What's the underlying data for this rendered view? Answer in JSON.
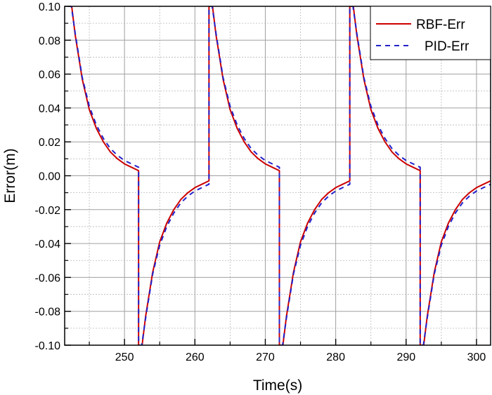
{
  "chart_data": {
    "type": "line",
    "xlabel": "Time(s)",
    "ylabel": "Error(m)",
    "xlim": [
      241.5,
      302
    ],
    "ylim": [
      -0.1,
      0.1
    ],
    "x_ticks": [
      250,
      260,
      270,
      280,
      290,
      300
    ],
    "y_ticks": [
      -0.1,
      -0.08,
      -0.06,
      -0.04,
      -0.02,
      0.0,
      0.02,
      0.04,
      0.06,
      0.08,
      0.1
    ],
    "x_tick_labels": [
      "250",
      "260",
      "270",
      "280",
      "290",
      "300"
    ],
    "y_tick_labels": [
      "-0.10",
      "-0.08",
      "-0.06",
      "-0.04",
      "-0.02",
      "0.00",
      "0.02",
      "0.04",
      "0.06",
      "0.08",
      "0.10"
    ],
    "grid": true,
    "legend_position": "top-right",
    "series": [
      {
        "name": "RBF-Err",
        "color": "#cc0000",
        "style": "solid",
        "points": [
          [
            242.0,
            0.1
          ],
          [
            242.5,
            0.1
          ],
          [
            243.0,
            0.083
          ],
          [
            244.0,
            0.057
          ],
          [
            245.0,
            0.039
          ],
          [
            246.0,
            0.028
          ],
          [
            247.0,
            0.02
          ],
          [
            248.0,
            0.014
          ],
          [
            249.0,
            0.01
          ],
          [
            250.0,
            0.007
          ],
          [
            251.0,
            0.005
          ],
          [
            252.0,
            0.003
          ],
          [
            252.0,
            -0.1
          ],
          [
            252.5,
            -0.1
          ],
          [
            253.0,
            -0.083
          ],
          [
            254.0,
            -0.057
          ],
          [
            255.0,
            -0.039
          ],
          [
            256.0,
            -0.028
          ],
          [
            257.0,
            -0.02
          ],
          [
            258.0,
            -0.014
          ],
          [
            259.0,
            -0.01
          ],
          [
            260.0,
            -0.007
          ],
          [
            261.0,
            -0.005
          ],
          [
            262.0,
            -0.003
          ],
          [
            262.0,
            0.1
          ],
          [
            262.5,
            0.1
          ],
          [
            263.0,
            0.083
          ],
          [
            264.0,
            0.057
          ],
          [
            265.0,
            0.039
          ],
          [
            266.0,
            0.028
          ],
          [
            267.0,
            0.02
          ],
          [
            268.0,
            0.014
          ],
          [
            269.0,
            0.01
          ],
          [
            270.0,
            0.007
          ],
          [
            271.0,
            0.005
          ],
          [
            272.0,
            0.003
          ],
          [
            272.0,
            -0.1
          ],
          [
            272.5,
            -0.1
          ],
          [
            273.0,
            -0.083
          ],
          [
            274.0,
            -0.057
          ],
          [
            275.0,
            -0.039
          ],
          [
            276.0,
            -0.028
          ],
          [
            277.0,
            -0.02
          ],
          [
            278.0,
            -0.014
          ],
          [
            279.0,
            -0.01
          ],
          [
            280.0,
            -0.007
          ],
          [
            281.0,
            -0.005
          ],
          [
            282.0,
            -0.003
          ],
          [
            282.0,
            0.1
          ],
          [
            282.5,
            0.1
          ],
          [
            283.0,
            0.083
          ],
          [
            284.0,
            0.057
          ],
          [
            285.0,
            0.039
          ],
          [
            286.0,
            0.028
          ],
          [
            287.0,
            0.02
          ],
          [
            288.0,
            0.014
          ],
          [
            289.0,
            0.01
          ],
          [
            290.0,
            0.007
          ],
          [
            291.0,
            0.005
          ],
          [
            292.0,
            0.003
          ],
          [
            292.0,
            -0.1
          ],
          [
            292.5,
            -0.1
          ],
          [
            293.0,
            -0.083
          ],
          [
            294.0,
            -0.057
          ],
          [
            295.0,
            -0.039
          ],
          [
            296.0,
            -0.028
          ],
          [
            297.0,
            -0.02
          ],
          [
            298.0,
            -0.014
          ],
          [
            299.0,
            -0.01
          ],
          [
            300.0,
            -0.007
          ],
          [
            301.0,
            -0.005
          ],
          [
            302.0,
            -0.003
          ]
        ]
      },
      {
        "name": "PID-Err",
        "color": "#2222cc",
        "style": "dashed",
        "points": [
          [
            241.95,
            0.1
          ],
          [
            242.45,
            0.1
          ],
          [
            243.0,
            0.084
          ],
          [
            244.0,
            0.058
          ],
          [
            245.0,
            0.041
          ],
          [
            246.0,
            0.03
          ],
          [
            247.0,
            0.022
          ],
          [
            248.0,
            0.016
          ],
          [
            249.0,
            0.012
          ],
          [
            250.0,
            0.009
          ],
          [
            251.0,
            0.007
          ],
          [
            252.0,
            0.005
          ],
          [
            252.0,
            -0.1
          ],
          [
            252.45,
            -0.1
          ],
          [
            253.0,
            -0.084
          ],
          [
            254.0,
            -0.058
          ],
          [
            255.0,
            -0.041
          ],
          [
            256.0,
            -0.03
          ],
          [
            257.0,
            -0.022
          ],
          [
            258.0,
            -0.016
          ],
          [
            259.0,
            -0.012
          ],
          [
            260.0,
            -0.009
          ],
          [
            261.0,
            -0.007
          ],
          [
            262.0,
            -0.005
          ],
          [
            262.0,
            0.1
          ],
          [
            262.45,
            0.1
          ],
          [
            263.0,
            0.084
          ],
          [
            264.0,
            0.058
          ],
          [
            265.0,
            0.041
          ],
          [
            266.0,
            0.03
          ],
          [
            267.0,
            0.022
          ],
          [
            268.0,
            0.016
          ],
          [
            269.0,
            0.012
          ],
          [
            270.0,
            0.009
          ],
          [
            271.0,
            0.007
          ],
          [
            272.0,
            0.005
          ],
          [
            272.0,
            -0.1
          ],
          [
            272.45,
            -0.1
          ],
          [
            273.0,
            -0.084
          ],
          [
            274.0,
            -0.058
          ],
          [
            275.0,
            -0.041
          ],
          [
            276.0,
            -0.03
          ],
          [
            277.0,
            -0.022
          ],
          [
            278.0,
            -0.016
          ],
          [
            279.0,
            -0.012
          ],
          [
            280.0,
            -0.009
          ],
          [
            281.0,
            -0.007
          ],
          [
            282.0,
            -0.005
          ],
          [
            282.0,
            0.1
          ],
          [
            282.45,
            0.1
          ],
          [
            283.0,
            0.084
          ],
          [
            284.0,
            0.058
          ],
          [
            285.0,
            0.041
          ],
          [
            286.0,
            0.03
          ],
          [
            287.0,
            0.022
          ],
          [
            288.0,
            0.016
          ],
          [
            289.0,
            0.012
          ],
          [
            290.0,
            0.009
          ],
          [
            291.0,
            0.007
          ],
          [
            292.0,
            0.005
          ],
          [
            292.0,
            -0.1
          ],
          [
            292.45,
            -0.1
          ],
          [
            293.0,
            -0.084
          ],
          [
            294.0,
            -0.058
          ],
          [
            295.0,
            -0.041
          ],
          [
            296.0,
            -0.03
          ],
          [
            297.0,
            -0.022
          ],
          [
            298.0,
            -0.016
          ],
          [
            299.0,
            -0.012
          ],
          [
            300.0,
            -0.009
          ],
          [
            301.0,
            -0.007
          ],
          [
            302.0,
            -0.005
          ]
        ]
      }
    ]
  }
}
